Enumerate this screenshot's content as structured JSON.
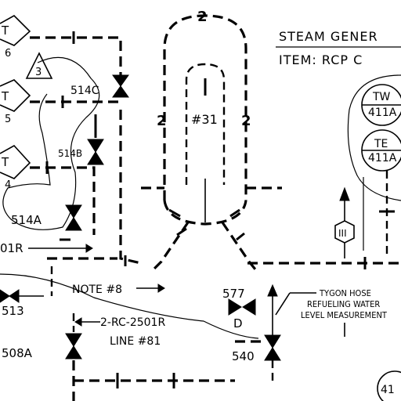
{
  "header": {
    "title_line1": "STEAM GENER",
    "title_line2": "ITEM: RCP C"
  },
  "generator": {
    "line_size": "2",
    "left_size": "2",
    "right_size": "2",
    "number": "#31"
  },
  "instruments": {
    "tw": "TW",
    "tw_num": "411A",
    "te": "TE",
    "te_num": "411A",
    "bottom_right_num": "41",
    "hex": "III",
    "triangle": "3"
  },
  "tees": {
    "t1": "T",
    "t1_num": "6",
    "t2": "T",
    "t2_num": "5",
    "t3": "T",
    "t3_num": "4"
  },
  "valves": {
    "v514c": "514C",
    "v514b": "514B",
    "v514a": "514A",
    "v513": "513",
    "v508a": "508A",
    "v577": "577",
    "v577_sub": "D",
    "v540": "540"
  },
  "labels": {
    "pipe_ref": "01R",
    "note": "NOTE #8",
    "line_spec": "2-RC-2501R",
    "line_num": "LINE #81",
    "tygon_1": "TYGON HOSE",
    "tygon_2": "REFUELING WATER",
    "tygon_3": "LEVEL MEASUREMENT"
  }
}
